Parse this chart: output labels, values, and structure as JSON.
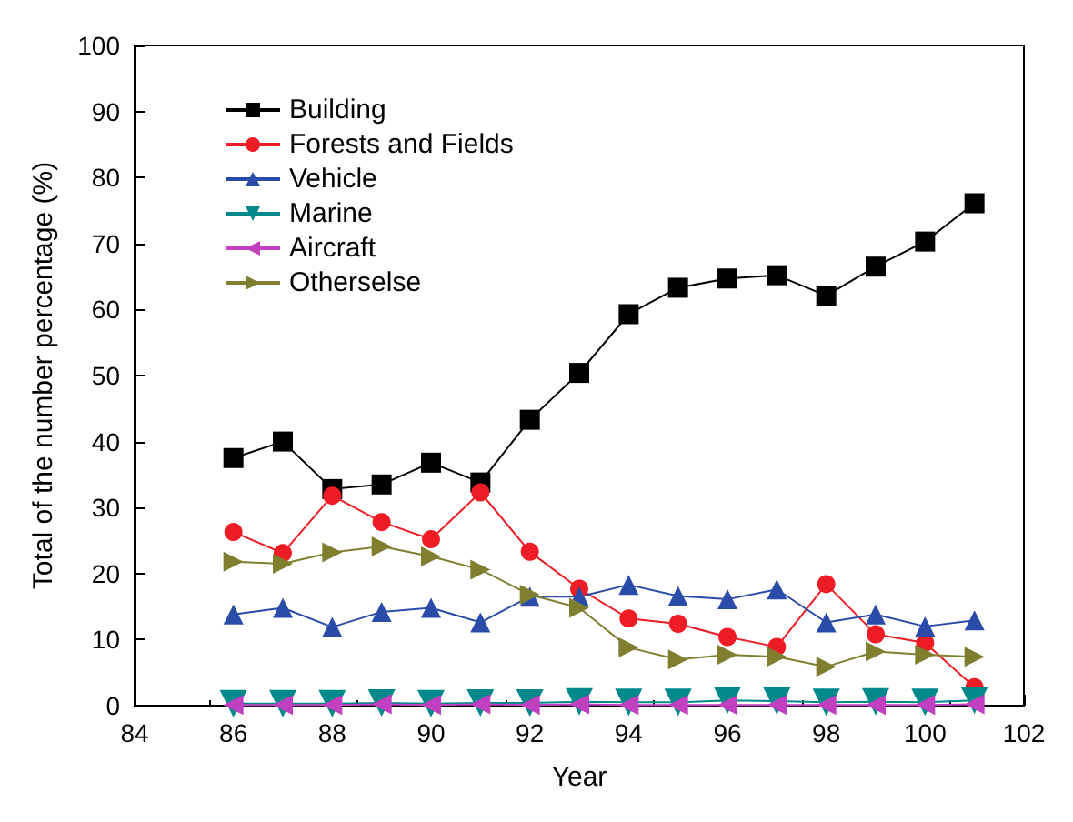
{
  "chart_data": {
    "type": "line",
    "xlabel": "Year",
    "ylabel": "Total of the number percentage (%)",
    "x": [
      86,
      87,
      88,
      89,
      90,
      91,
      92,
      93,
      94,
      95,
      96,
      97,
      98,
      99,
      100,
      101
    ],
    "xlim": [
      84,
      102
    ],
    "xticks": [
      84,
      86,
      88,
      90,
      92,
      94,
      96,
      98,
      100,
      102
    ],
    "ylim": [
      0,
      100
    ],
    "yticks": [
      0,
      10,
      20,
      30,
      40,
      50,
      60,
      70,
      80,
      90,
      100
    ],
    "grid": false,
    "legend": "top left",
    "line_style": "solid",
    "series": [
      {
        "name": "Building",
        "color": "#000000",
        "marker": "square",
        "values": [
          37.5,
          40,
          32.8,
          33.5,
          36.8,
          33.8,
          43.3,
          50.4,
          59.3,
          63.3,
          64.7,
          65.2,
          62.1,
          66.5,
          70.3,
          76.1
        ]
      },
      {
        "name": "Forests and Fields",
        "color": "#ee1c25",
        "marker": "circle",
        "values": [
          26.3,
          23.1,
          31.8,
          27.8,
          25.2,
          32.3,
          23.3,
          17.7,
          13.2,
          12.4,
          10.4,
          8.9,
          18.4,
          10.8,
          9.5,
          2.8
        ]
      },
      {
        "name": "Vehicle",
        "color": "#2b4ba8",
        "marker": "triangle",
        "values": [
          13.8,
          14.8,
          11.9,
          14.2,
          14.8,
          12.6,
          16.5,
          16.5,
          18.3,
          16.6,
          16.1,
          17.6,
          12.6,
          13.8,
          12.0,
          12.9
        ]
      },
      {
        "name": "Marine",
        "color": "#00898a",
        "marker": "triangle-down",
        "values": [
          0.3,
          0.3,
          0.3,
          0.4,
          0.3,
          0.4,
          0.4,
          0.6,
          0.5,
          0.5,
          0.8,
          0.7,
          0.5,
          0.6,
          0.5,
          0.8
        ]
      },
      {
        "name": "Aircraft",
        "color": "#c040c0",
        "marker": "triangle-left",
        "values": [
          0.1,
          0.1,
          0.1,
          0.2,
          0.1,
          0.2,
          0.1,
          0.2,
          0.1,
          0.1,
          0.1,
          0.1,
          0.1,
          0.1,
          0.1,
          0.2
        ]
      },
      {
        "name": "Otherselse",
        "color": "#7f7f2f",
        "marker": "triangle-right",
        "values": [
          21.8,
          21.5,
          23.2,
          24.1,
          22.6,
          20.6,
          16.8,
          14.8,
          8.8,
          7.0,
          7.7,
          7.4,
          5.9,
          8.2,
          7.7,
          7.4
        ]
      }
    ]
  }
}
